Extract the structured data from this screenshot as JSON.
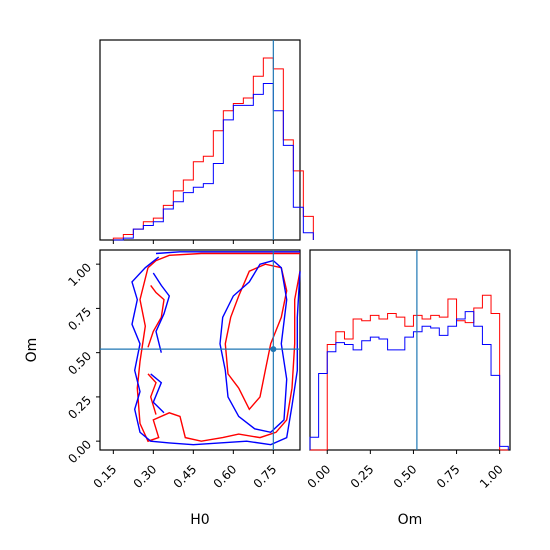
{
  "chart_data": {
    "type": "corner",
    "parameters": [
      "H0",
      "Om"
    ],
    "truths": {
      "H0": 0.75,
      "Om": 0.52
    },
    "colors": {
      "red_series": "#ff0000",
      "blue_series": "#0000ff",
      "truth_line": "#1f77b4"
    },
    "H0_hist": {
      "bins": [
        0.15,
        0.1875,
        0.225,
        0.2625,
        0.3,
        0.3375,
        0.375,
        0.4125,
        0.45,
        0.4875,
        0.525,
        0.5625,
        0.6,
        0.6375,
        0.675,
        0.7125,
        0.75,
        0.7875,
        0.825,
        0.8625
      ],
      "red": [
        0.01,
        0.03,
        0.06,
        0.1,
        0.12,
        0.19,
        0.27,
        0.33,
        0.43,
        0.46,
        0.6,
        0.71,
        0.75,
        0.78,
        0.9,
        1.0,
        0.94,
        0.55,
        0.38,
        0.13
      ],
      "blue": [
        0.0,
        0.01,
        0.06,
        0.08,
        0.1,
        0.17,
        0.21,
        0.26,
        0.29,
        0.31,
        0.42,
        0.66,
        0.74,
        0.74,
        0.8,
        0.86,
        0.71,
        0.52,
        0.18,
        0.04
      ]
    },
    "Om_hist": {
      "bins": [
        -0.1,
        -0.05,
        0.0,
        0.05,
        0.1,
        0.15,
        0.2,
        0.25,
        0.3,
        0.35,
        0.4,
        0.45,
        0.5,
        0.55,
        0.6,
        0.65,
        0.7,
        0.75,
        0.8,
        0.85,
        0.9,
        0.95,
        1.0,
        1.05
      ],
      "red": [
        0.0,
        0.0,
        0.58,
        0.65,
        0.61,
        0.72,
        0.71,
        0.74,
        0.72,
        0.75,
        0.73,
        0.68,
        0.74,
        0.72,
        0.74,
        0.73,
        0.83,
        0.71,
        0.7,
        0.78,
        0.85,
        0.75,
        0.0
      ],
      "blue": [
        0.07,
        0.42,
        0.54,
        0.59,
        0.58,
        0.55,
        0.6,
        0.62,
        0.61,
        0.55,
        0.55,
        0.62,
        0.65,
        0.68,
        0.67,
        0.63,
        0.68,
        0.72,
        0.76,
        0.68,
        0.58,
        0.41,
        0.02
      ]
    },
    "xlim_H0": [
      0.1,
      0.85
    ],
    "xlim_Om": [
      -0.1,
      1.06
    ],
    "ylim_Om": [
      -0.05,
      1.08
    ],
    "ticks_H0": [
      "0.15",
      "0.30",
      "0.45",
      "0.60",
      "0.75"
    ],
    "ticks_H0_values": [
      0.15,
      0.3,
      0.45,
      0.6,
      0.75
    ],
    "ticks_Om": [
      "0.00",
      "0.25",
      "0.50",
      "0.75",
      "1.00"
    ],
    "ticks_Om_values": [
      0.0,
      0.25,
      0.5,
      0.75,
      1.0
    ],
    "contours": {
      "red": [
        [
          [
            0.28,
            0.98
          ],
          [
            0.31,
            1.02
          ],
          [
            0.36,
            1.05
          ],
          [
            0.48,
            1.06
          ],
          [
            0.6,
            1.06
          ],
          [
            0.7,
            1.06
          ],
          [
            0.8,
            1.06
          ],
          [
            0.85,
            1.06
          ]
        ],
        [
          [
            0.28,
            0.98
          ],
          [
            0.25,
            0.8
          ],
          [
            0.27,
            0.65
          ],
          [
            0.25,
            0.45
          ],
          [
            0.24,
            0.3
          ],
          [
            0.25,
            0.1
          ],
          [
            0.28,
            0.0
          ],
          [
            0.32,
            0.02
          ],
          [
            0.3,
            0.12
          ],
          [
            0.36,
            0.16
          ],
          [
            0.4,
            0.14
          ],
          [
            0.42,
            0.02
          ],
          [
            0.48,
            0.0
          ],
          [
            0.56,
            0.02
          ],
          [
            0.62,
            0.04
          ],
          [
            0.7,
            0.02
          ],
          [
            0.76,
            0.05
          ],
          [
            0.8,
            0.12
          ],
          [
            0.82,
            0.3
          ],
          [
            0.83,
            0.55
          ],
          [
            0.83,
            0.8
          ],
          [
            0.85,
            0.96
          ]
        ],
        [
          [
            0.62,
            0.3
          ],
          [
            0.58,
            0.38
          ],
          [
            0.57,
            0.55
          ],
          [
            0.59,
            0.7
          ],
          [
            0.62,
            0.82
          ],
          [
            0.66,
            0.96
          ],
          [
            0.72,
            1.0
          ],
          [
            0.78,
            0.98
          ],
          [
            0.8,
            0.85
          ],
          [
            0.78,
            0.7
          ],
          [
            0.74,
            0.55
          ],
          [
            0.72,
            0.4
          ],
          [
            0.7,
            0.25
          ],
          [
            0.66,
            0.18
          ],
          [
            0.62,
            0.3
          ]
        ],
        [
          [
            0.29,
            0.88
          ],
          [
            0.31,
            0.84
          ],
          [
            0.34,
            0.8
          ],
          [
            0.33,
            0.7
          ],
          [
            0.3,
            0.62
          ],
          [
            0.28,
            0.53
          ]
        ],
        [
          [
            0.28,
            0.38
          ],
          [
            0.31,
            0.33
          ],
          [
            0.29,
            0.25
          ],
          [
            0.31,
            0.15
          ]
        ]
      ],
      "blue": [
        [
          [
            0.31,
            1.06
          ],
          [
            0.4,
            1.07
          ],
          [
            0.5,
            1.07
          ],
          [
            0.6,
            1.07
          ],
          [
            0.7,
            1.07
          ],
          [
            0.8,
            1.07
          ],
          [
            0.85,
            1.07
          ]
        ],
        [
          [
            0.32,
            1.04
          ],
          [
            0.27,
            0.98
          ],
          [
            0.22,
            0.9
          ],
          [
            0.24,
            0.8
          ],
          [
            0.22,
            0.66
          ],
          [
            0.25,
            0.55
          ],
          [
            0.23,
            0.4
          ],
          [
            0.25,
            0.28
          ],
          [
            0.23,
            0.18
          ],
          [
            0.25,
            0.05
          ],
          [
            0.29,
            0.0
          ],
          [
            0.36,
            -0.01
          ],
          [
            0.45,
            -0.02
          ],
          [
            0.55,
            -0.01
          ],
          [
            0.65,
            0.0
          ],
          [
            0.74,
            -0.02
          ],
          [
            0.8,
            0.02
          ],
          [
            0.82,
            0.2
          ],
          [
            0.84,
            0.4
          ],
          [
            0.84,
            0.7
          ],
          [
            0.85,
            0.96
          ]
        ],
        [
          [
            0.75,
            1.02
          ],
          [
            0.7,
            1.0
          ],
          [
            0.66,
            0.9
          ],
          [
            0.6,
            0.82
          ],
          [
            0.56,
            0.7
          ],
          [
            0.55,
            0.55
          ],
          [
            0.57,
            0.4
          ],
          [
            0.58,
            0.25
          ],
          [
            0.62,
            0.14
          ],
          [
            0.68,
            0.07
          ],
          [
            0.74,
            0.05
          ],
          [
            0.79,
            0.12
          ],
          [
            0.8,
            0.35
          ],
          [
            0.78,
            0.55
          ],
          [
            0.8,
            0.8
          ],
          [
            0.78,
            0.98
          ],
          [
            0.75,
            1.02
          ]
        ],
        [
          [
            0.3,
            0.95
          ],
          [
            0.33,
            0.88
          ],
          [
            0.36,
            0.82
          ],
          [
            0.34,
            0.72
          ],
          [
            0.31,
            0.62
          ],
          [
            0.33,
            0.5
          ]
        ],
        [
          [
            0.29,
            0.38
          ],
          [
            0.33,
            0.33
          ],
          [
            0.3,
            0.22
          ],
          [
            0.34,
            0.16
          ]
        ]
      ]
    }
  }
}
